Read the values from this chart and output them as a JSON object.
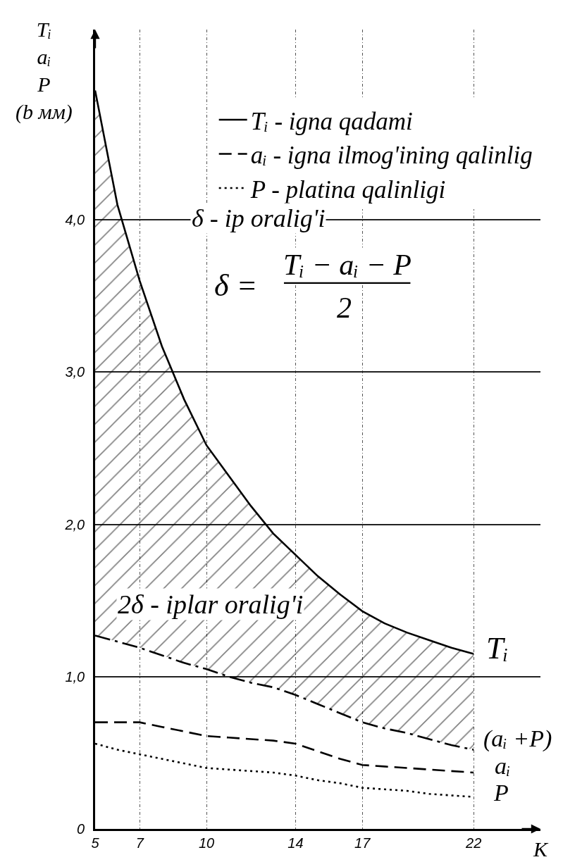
{
  "chart_data": {
    "type": "line",
    "xlabel": "K",
    "ylabel": "Tᵢ\naᵢ\nP\n(b мм)",
    "x": [
      5,
      6,
      7,
      8,
      9,
      10,
      11,
      12,
      13,
      14,
      15,
      16,
      17,
      18,
      19,
      20,
      21,
      22
    ],
    "series": [
      {
        "name": "Tᵢ - igna qadami",
        "color": "#000000",
        "line_style": "solid",
        "values": [
          4.85,
          4.1,
          3.6,
          3.17,
          2.82,
          2.52,
          2.32,
          2.12,
          1.94,
          1.8,
          1.66,
          1.54,
          1.43,
          1.35,
          1.29,
          1.24,
          1.19,
          1.15
        ],
        "lower": [
          1.27,
          1.23,
          1.19,
          1.14,
          1.09,
          1.05,
          1.0,
          0.96,
          0.93,
          0.88,
          0.82,
          0.76,
          0.7,
          0.66,
          0.63,
          0.59,
          0.55,
          0.52
        ],
        "upper": [
          4.85,
          4.1,
          3.6,
          3.17,
          2.82,
          2.52,
          2.32,
          2.12,
          1.94,
          1.8,
          1.66,
          1.54,
          1.43,
          1.35,
          1.29,
          1.24,
          1.19,
          1.15
        ]
      },
      {
        "color": "#000000",
        "line_style": "dashdot",
        "values": [
          1.27,
          1.23,
          1.19,
          1.14,
          1.09,
          1.05,
          1.0,
          0.96,
          0.93,
          0.88,
          0.82,
          0.76,
          0.7,
          0.66,
          0.63,
          0.59,
          0.55,
          0.52
        ]
      },
      {
        "name": "aᵢ - igna ilmog'ining qalinlig",
        "color": "#000000",
        "line_style": "dashed",
        "values": [
          0.7,
          0.7,
          0.7,
          0.67,
          0.64,
          0.61,
          0.6,
          0.59,
          0.58,
          0.56,
          0.51,
          0.46,
          0.42,
          0.41,
          0.4,
          0.39,
          0.38,
          0.37
        ]
      },
      {
        "name": "P - platina qalinligi",
        "color": "#000000",
        "line_style": "dotted",
        "values": [
          0.56,
          0.52,
          0.49,
          0.46,
          0.43,
          0.4,
          0.39,
          0.38,
          0.37,
          0.35,
          0.32,
          0.3,
          0.27,
          0.26,
          0.25,
          0.23,
          0.22,
          0.21
        ]
      }
    ],
    "xlim": [
      5,
      25
    ],
    "ylim": [
      0,
      5.25
    ],
    "xticks": [
      5,
      7,
      10,
      14,
      17,
      22
    ],
    "yticks": [
      0,
      {
        "value": 1,
        "label": "1,0"
      },
      {
        "value": 2,
        "label": "2,0"
      },
      {
        "value": 3,
        "label": "3,0"
      },
      {
        "value": 4,
        "label": "4,0"
      }
    ],
    "grid": true,
    "legend": "top right",
    "annotations": [
      "δ - ip oralig'i",
      "δ =",
      "Tᵢ − aᵢ − P",
      "2",
      "2δ - iplar oralig'i",
      "Tᵢ",
      "(aᵢ +P)",
      "aᵢ",
      "P"
    ]
  }
}
